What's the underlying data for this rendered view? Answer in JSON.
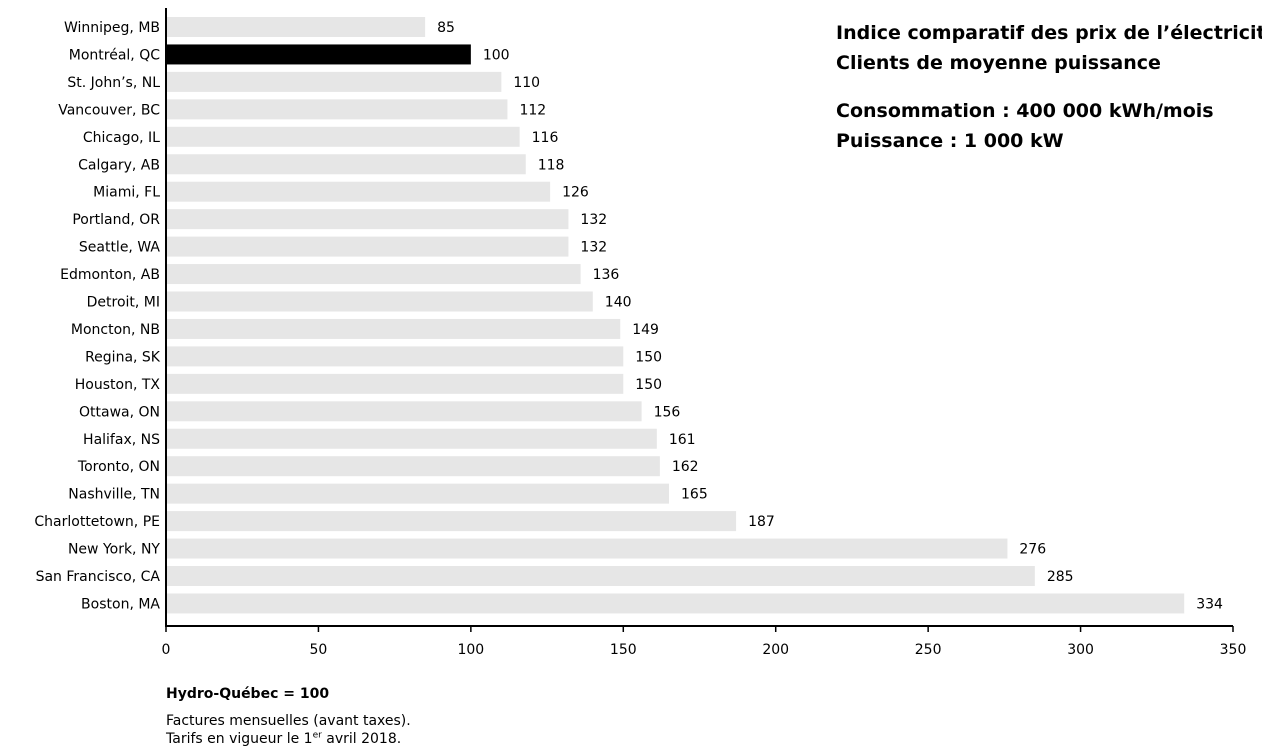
{
  "chart_data": {
    "type": "bar",
    "orientation": "horizontal",
    "title": "Indice comparatif des prix de l’électricité",
    "subtitle": "Clients de moyenne puissance",
    "details": [
      "Consommation : 400 000 kWh/mois",
      "Puissance : 1 000 kW"
    ],
    "categories": [
      "Winnipeg, MB",
      "Montréal, QC",
      "St. John’s, NL",
      "Vancouver, BC",
      "Chicago, IL",
      "Calgary, AB",
      "Miami, FL",
      "Portland, OR",
      "Seattle, WA",
      "Edmonton, AB",
      "Detroit, MI",
      "Moncton, NB",
      "Regina, SK",
      "Houston, TX",
      "Ottawa, ON",
      "Halifax, NS",
      "Toronto, ON",
      "Nashville, TN",
      "Charlottetown, PE",
      "New York, NY",
      "San Francisco, CA",
      "Boston, MA"
    ],
    "values": [
      85,
      100,
      110,
      112,
      116,
      118,
      126,
      132,
      132,
      136,
      140,
      149,
      150,
      150,
      156,
      161,
      162,
      165,
      187,
      276,
      285,
      334
    ],
    "highlight_category": "Montréal, QC",
    "xlim": [
      0,
      350
    ],
    "xticks": [
      0,
      50,
      100,
      150,
      200,
      250,
      300,
      350
    ],
    "colors": {
      "bar": "#e6e6e6",
      "highlight": "#000000"
    },
    "grid": false,
    "legend": "none"
  },
  "notes": {
    "reference": "Hydro-Québec = 100",
    "line1": "Factures mensuelles (avant taxes).",
    "line2_before": "Tarifs en vigueur le 1",
    "line2_sup": "er",
    "line2_after": " avril 2018."
  }
}
